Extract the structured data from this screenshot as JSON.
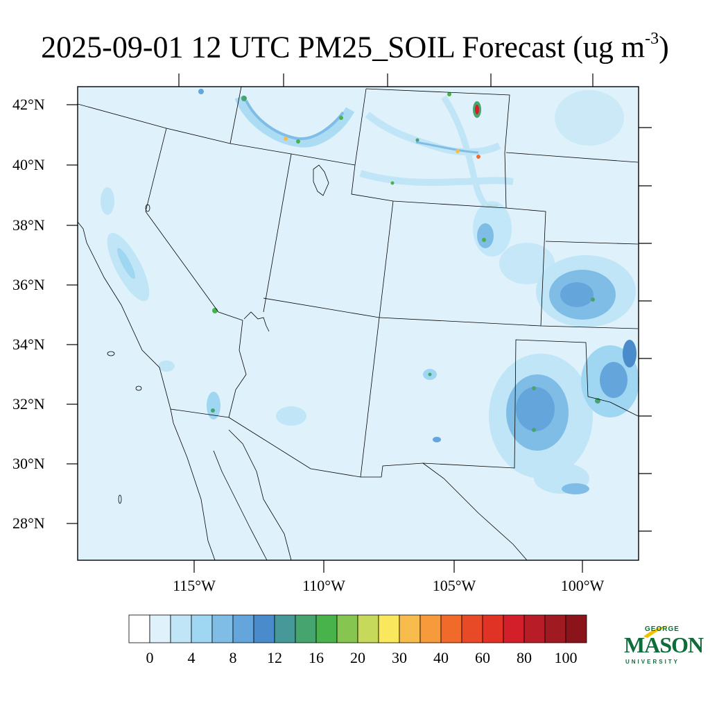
{
  "title": {
    "main": "2025-09-01 12 UTC PM25_SOIL Forecast (ug m",
    "exponent": "-3",
    "close": ")"
  },
  "map": {
    "region": "Southwestern United States and northern Mexico",
    "lat_labels": [
      "42°N",
      "40°N",
      "38°N",
      "36°N",
      "34°N",
      "32°N",
      "30°N",
      "28°N"
    ],
    "lon_labels": [
      "115°W",
      "110°W",
      "105°W",
      "100°W"
    ],
    "background_color": "#dff1fb",
    "boundary_color": "#000000"
  },
  "colorbar": {
    "labels": [
      "0",
      "4",
      "8",
      "12",
      "16",
      "20",
      "30",
      "40",
      "60",
      "80",
      "100"
    ],
    "colors": [
      "#ffffff",
      "#dff1fb",
      "#bfe5f7",
      "#9fd6f2",
      "#80bde6",
      "#64a6dc",
      "#4a8ccb",
      "#479999",
      "#46a46f",
      "#48b34a",
      "#86c54f",
      "#c6d95a",
      "#f9e85e",
      "#f8bc4c",
      "#f69a3c",
      "#f26a2a",
      "#e84a27",
      "#e03326",
      "#d21f2a",
      "#b81c26",
      "#a01a22",
      "#8b141b"
    ]
  },
  "logo": {
    "line1": "GEORGE",
    "line2": "MASON",
    "line3": "UNIVERSITY",
    "color": "#0f6b3a",
    "accent": "#f2c200"
  }
}
